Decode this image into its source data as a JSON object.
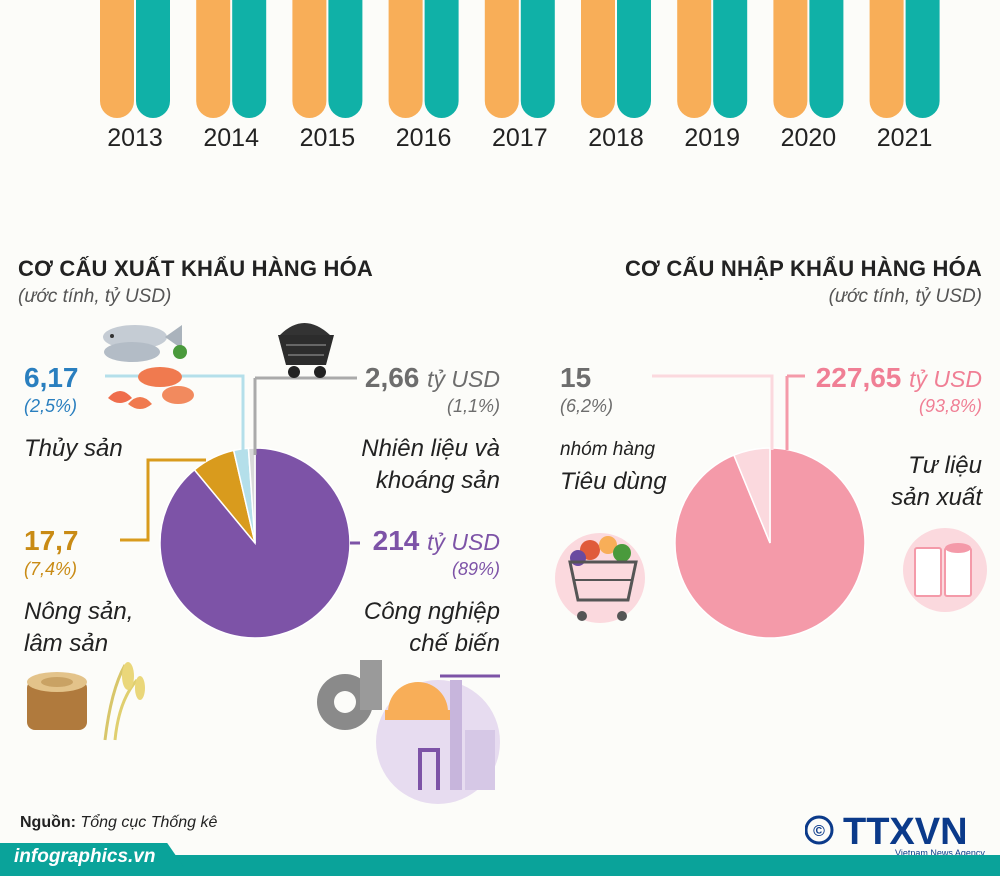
{
  "top_bars": {
    "years": [
      "2013",
      "2014",
      "2015",
      "2016",
      "2017",
      "2018",
      "2019",
      "2020",
      "2021"
    ],
    "colors": {
      "orange": "#f8ae58",
      "teal": "#10b1a7"
    }
  },
  "chart_data": [
    {
      "type": "pie",
      "title": "CƠ CẤU XUẤT KHẨU HÀNG HÓA",
      "subtitle": "(ước tính, tỷ USD)",
      "slices": [
        {
          "label_lines": [
            "Công nghiệp",
            "chế biến"
          ],
          "value": "214",
          "unit": "tỷ USD",
          "percent": "(89%)",
          "percent_value": 89,
          "color": "#7d53a7"
        },
        {
          "label_lines": [
            "Nông sản,",
            "lâm sản"
          ],
          "value": "17,7",
          "unit": "",
          "percent": "(7,4%)",
          "percent_value": 7.4,
          "color": "#d99b1d"
        },
        {
          "label_lines": [
            "Thủy sản"
          ],
          "value": "6,17",
          "unit": "",
          "percent": "(2,5%)",
          "percent_value": 2.5,
          "color": "#b4dfea"
        },
        {
          "label_lines": [
            "Nhiên liệu và",
            "khoáng sản"
          ],
          "value": "2,66",
          "unit": "tỷ USD",
          "percent": "(1,1%)",
          "percent_value": 1.1,
          "color": "#d9d9d9"
        }
      ]
    },
    {
      "type": "pie",
      "title": "CƠ CẤU NHẬP KHẨU HÀNG HÓA",
      "subtitle": "(ước tính, tỷ USD)",
      "slices": [
        {
          "label_lines": [
            "Tư liệu",
            "sản xuất"
          ],
          "value": "227,65",
          "unit": "tỷ USD",
          "percent": "(93,8%)",
          "percent_value": 93.8,
          "color": "#f49aa9"
        },
        {
          "label_lines": [
            "nhóm hàng",
            "Tiêu dùng"
          ],
          "value": "15",
          "unit": "",
          "percent": "(6,2%)",
          "percent_value": 6.2,
          "color": "#fbd9de"
        }
      ]
    }
  ],
  "footer": {
    "source_label": "Nguồn:",
    "source_text": " Tổng cục Thống kê",
    "site": "infographics.vn",
    "logo_text": "TTXVN",
    "logo_sub": "Vietnam News Agency",
    "copyright": "©"
  },
  "icons": [
    "fish-seafood-icon",
    "coal-cart-icon",
    "wood-rice-icon",
    "industry-factory-icon",
    "shopping-cart-icon",
    "industrial-materials-icon"
  ]
}
